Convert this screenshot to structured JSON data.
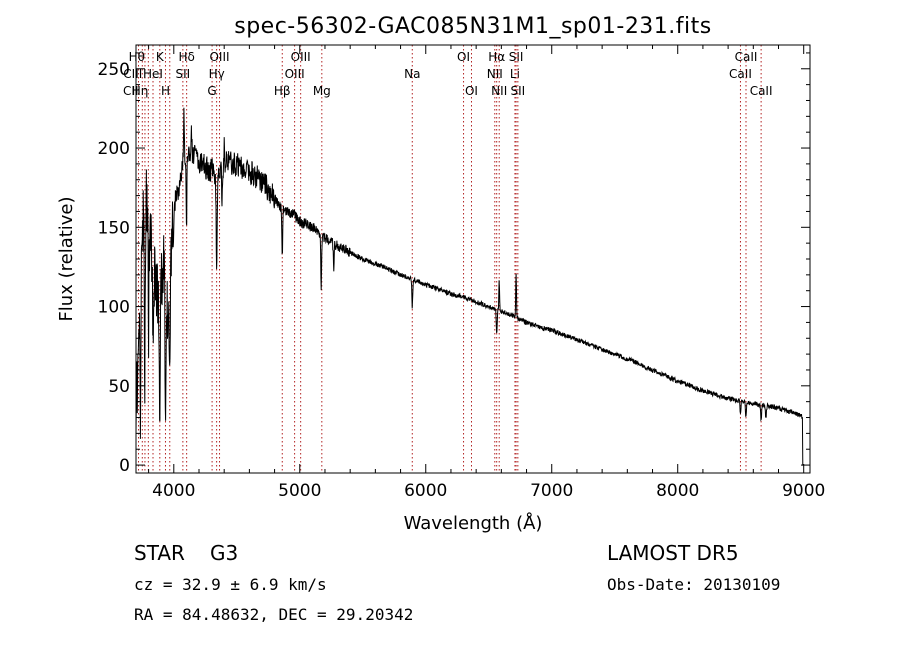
{
  "chart_data": {
    "type": "line",
    "title": "spec-56302-GAC085N31M1_sp01-231.fits",
    "xlabel": "Wavelength (Å)",
    "ylabel": "Flux (relative)",
    "xlim": [
      3700,
      9050
    ],
    "ylim": [
      -5,
      265
    ],
    "x_ticks": [
      4000,
      5000,
      6000,
      7000,
      8000,
      9000
    ],
    "y_ticks": [
      0,
      50,
      100,
      150,
      200,
      250
    ],
    "grid": false,
    "legend": "none",
    "line_color": "#000000",
    "marker_color": "#b22222",
    "continuum": [
      [
        3700,
        40
      ],
      [
        3720,
        60
      ],
      [
        3740,
        130
      ],
      [
        3760,
        160
      ],
      [
        3780,
        170
      ],
      [
        3800,
        155
      ],
      [
        3830,
        130
      ],
      [
        3860,
        110
      ],
      [
        3890,
        105
      ],
      [
        3920,
        130
      ],
      [
        3950,
        95
      ],
      [
        3970,
        120
      ],
      [
        3990,
        150
      ],
      [
        4010,
        165
      ],
      [
        4040,
        175
      ],
      [
        4070,
        190
      ],
      [
        4100,
        195
      ],
      [
        4150,
        195
      ],
      [
        4200,
        192
      ],
      [
        4250,
        188
      ],
      [
        4300,
        186
      ],
      [
        4350,
        180
      ],
      [
        4400,
        190
      ],
      [
        4450,
        191
      ],
      [
        4500,
        189
      ],
      [
        4550,
        187
      ],
      [
        4600,
        185
      ],
      [
        4650,
        182
      ],
      [
        4700,
        179
      ],
      [
        4750,
        174
      ],
      [
        4800,
        168
      ],
      [
        4850,
        163
      ],
      [
        4900,
        160
      ],
      [
        4950,
        158
      ],
      [
        5000,
        154
      ],
      [
        5100,
        150
      ],
      [
        5200,
        143
      ],
      [
        5300,
        138
      ],
      [
        5400,
        134
      ],
      [
        5500,
        130
      ],
      [
        5600,
        127
      ],
      [
        5700,
        124
      ],
      [
        5800,
        120
      ],
      [
        5900,
        117
      ],
      [
        6000,
        114
      ],
      [
        6100,
        111
      ],
      [
        6200,
        108
      ],
      [
        6300,
        106
      ],
      [
        6400,
        103
      ],
      [
        6500,
        100
      ],
      [
        6600,
        97
      ],
      [
        6700,
        94
      ],
      [
        6800,
        90
      ],
      [
        6900,
        87
      ],
      [
        7000,
        85
      ],
      [
        7200,
        79
      ],
      [
        7400,
        73
      ],
      [
        7600,
        67
      ],
      [
        7800,
        60
      ],
      [
        8000,
        53
      ],
      [
        8200,
        47
      ],
      [
        8400,
        42
      ],
      [
        8600,
        39
      ],
      [
        8800,
        36
      ],
      [
        8950,
        32
      ],
      [
        9000,
        30
      ]
    ],
    "absorption_features": [
      [
        3735,
        -90
      ],
      [
        3770,
        -110
      ],
      [
        3800,
        -70
      ],
      [
        3835,
        -60
      ],
      [
        3889,
        -75
      ],
      [
        3934,
        -90
      ],
      [
        3968,
        -60
      ],
      [
        4101,
        -40
      ],
      [
        4340,
        -60
      ],
      [
        4384,
        -20
      ],
      [
        4861,
        -30
      ],
      [
        5170,
        -35
      ],
      [
        5269,
        -15
      ],
      [
        5893,
        -18
      ],
      [
        6563,
        -15
      ],
      [
        8498,
        -8
      ],
      [
        8542,
        -10
      ],
      [
        8662,
        -10
      ],
      [
        8700,
        -8
      ]
    ],
    "emission_features": [
      [
        4080,
        40
      ],
      [
        4140,
        20
      ],
      [
        4400,
        12
      ],
      [
        6583,
        18
      ],
      [
        6717,
        28
      ]
    ],
    "line_markers": [
      {
        "x": 3720,
        "label": "CII",
        "row": 3,
        "anchor": "end"
      },
      {
        "x": 3750,
        "label": "CIII",
        "row": 2,
        "anchor": "end"
      },
      {
        "x": 3771,
        "label": "Hθ",
        "row": 1,
        "anchor": "end"
      },
      {
        "x": 3798,
        "label": "Hη",
        "row": 3,
        "anchor": "end"
      },
      {
        "x": 3835,
        "label": "HeI",
        "row": 2,
        "anchor": "middle"
      },
      {
        "x": 3889,
        "label": "K",
        "row": 1,
        "anchor": "middle"
      },
      {
        "x": 3934,
        "label": "H",
        "row": 3,
        "anchor": "middle"
      },
      {
        "x": 3968,
        "label": "",
        "row": 0,
        "anchor": "middle"
      },
      {
        "x": 4072,
        "label": "SII",
        "row": 2,
        "anchor": "middle"
      },
      {
        "x": 4102,
        "label": "Hδ",
        "row": 1,
        "anchor": "middle"
      },
      {
        "x": 4304,
        "label": "G",
        "row": 3,
        "anchor": "middle"
      },
      {
        "x": 4340,
        "label": "Hγ",
        "row": 2,
        "anchor": "middle"
      },
      {
        "x": 4363,
        "label": "OIII",
        "row": 1,
        "anchor": "middle"
      },
      {
        "x": 4861,
        "label": "Hβ",
        "row": 3,
        "anchor": "middle"
      },
      {
        "x": 4959,
        "label": "OIII",
        "row": 2,
        "anchor": "middle"
      },
      {
        "x": 5007,
        "label": "OIII",
        "row": 1,
        "anchor": "middle"
      },
      {
        "x": 5175,
        "label": "Mg",
        "row": 3,
        "anchor": "middle"
      },
      {
        "x": 5893,
        "label": "Na",
        "row": 2,
        "anchor": "middle"
      },
      {
        "x": 6300,
        "label": "OI",
        "row": 1,
        "anchor": "middle"
      },
      {
        "x": 6363,
        "label": "OI",
        "row": 3,
        "anchor": "middle"
      },
      {
        "x": 6548,
        "label": "NII",
        "row": 2,
        "anchor": "middle"
      },
      {
        "x": 6563,
        "label": "Hα",
        "row": 1,
        "anchor": "middle"
      },
      {
        "x": 6583,
        "label": "NII",
        "row": 3,
        "anchor": "middle"
      },
      {
        "x": 6708,
        "label": "Li",
        "row": 2,
        "anchor": "middle"
      },
      {
        "x": 6717,
        "label": "SII",
        "row": 1,
        "anchor": "middle"
      },
      {
        "x": 6731,
        "label": "SII",
        "row": 3,
        "anchor": "middle"
      },
      {
        "x": 8498,
        "label": "CaII",
        "row": 2,
        "anchor": "middle"
      },
      {
        "x": 8542,
        "label": "CaII",
        "row": 1,
        "anchor": "middle"
      },
      {
        "x": 8662,
        "label": "CaII",
        "row": 3,
        "anchor": "middle"
      }
    ]
  },
  "info": {
    "object_class": "STAR",
    "subclass": "G3",
    "survey": "LAMOST DR5",
    "redshift": "cz = 32.9 ± 6.9 km/s",
    "obs_date": "Obs-Date: 20130109",
    "coords": "RA =  84.48632, DEC =  29.20342"
  }
}
